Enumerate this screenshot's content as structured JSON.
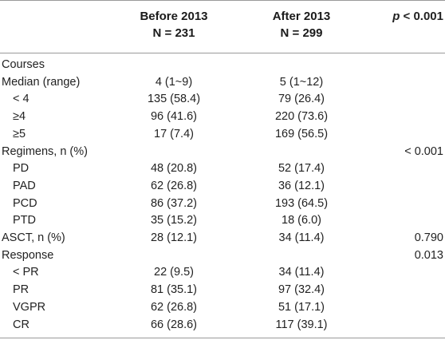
{
  "header": {
    "before_title": "Before 2013",
    "before_n": "N = 231",
    "after_title": "After 2013",
    "after_n": "N = 299",
    "p_letter": "p",
    "p_threshold": "< 0.001"
  },
  "rows": [
    {
      "label": "Courses",
      "indent": false,
      "before": "",
      "after": "",
      "p": ""
    },
    {
      "label": "Median (range)",
      "indent": false,
      "before": "4 (1~9)",
      "after": "5 (1~12)",
      "p": ""
    },
    {
      "label": "< 4",
      "indent": true,
      "before": "135 (58.4)",
      "after": "79 (26.4)",
      "p": ""
    },
    {
      "label": "≥4",
      "indent": true,
      "before": "96 (41.6)",
      "after": "220 (73.6)",
      "p": ""
    },
    {
      "label": "≥5",
      "indent": true,
      "before": "17 (7.4)",
      "after": "169 (56.5)",
      "p": ""
    },
    {
      "label": "Regimens, n (%)",
      "indent": false,
      "before": "",
      "after": "",
      "p": "< 0.001"
    },
    {
      "label": "PD",
      "indent": true,
      "before": "48 (20.8)",
      "after": "52 (17.4)",
      "p": ""
    },
    {
      "label": "PAD",
      "indent": true,
      "before": "62 (26.8)",
      "after": "36 (12.1)",
      "p": ""
    },
    {
      "label": "PCD",
      "indent": true,
      "before": "86 (37.2)",
      "after": "193 (64.5)",
      "p": ""
    },
    {
      "label": "PTD",
      "indent": true,
      "before": "35 (15.2)",
      "after": "18 (6.0)",
      "p": ""
    },
    {
      "label": "ASCT, n (%)",
      "indent": false,
      "before": "28 (12.1)",
      "after": "34 (11.4)",
      "p": "0.790"
    },
    {
      "label": "Response",
      "indent": false,
      "before": "",
      "after": "",
      "p": "0.013"
    },
    {
      "label": "< PR",
      "indent": true,
      "before": "22 (9.5)",
      "after": "34 (11.4)",
      "p": ""
    },
    {
      "label": "PR",
      "indent": true,
      "before": "81 (35.1)",
      "after": "97 (32.4)",
      "p": ""
    },
    {
      "label": "VGPR",
      "indent": true,
      "before": "62 (26.8)",
      "after": "51 (17.1)",
      "p": ""
    },
    {
      "label": "CR",
      "indent": true,
      "before": "66 (28.6)",
      "after": "117 (39.1)",
      "p": ""
    }
  ]
}
